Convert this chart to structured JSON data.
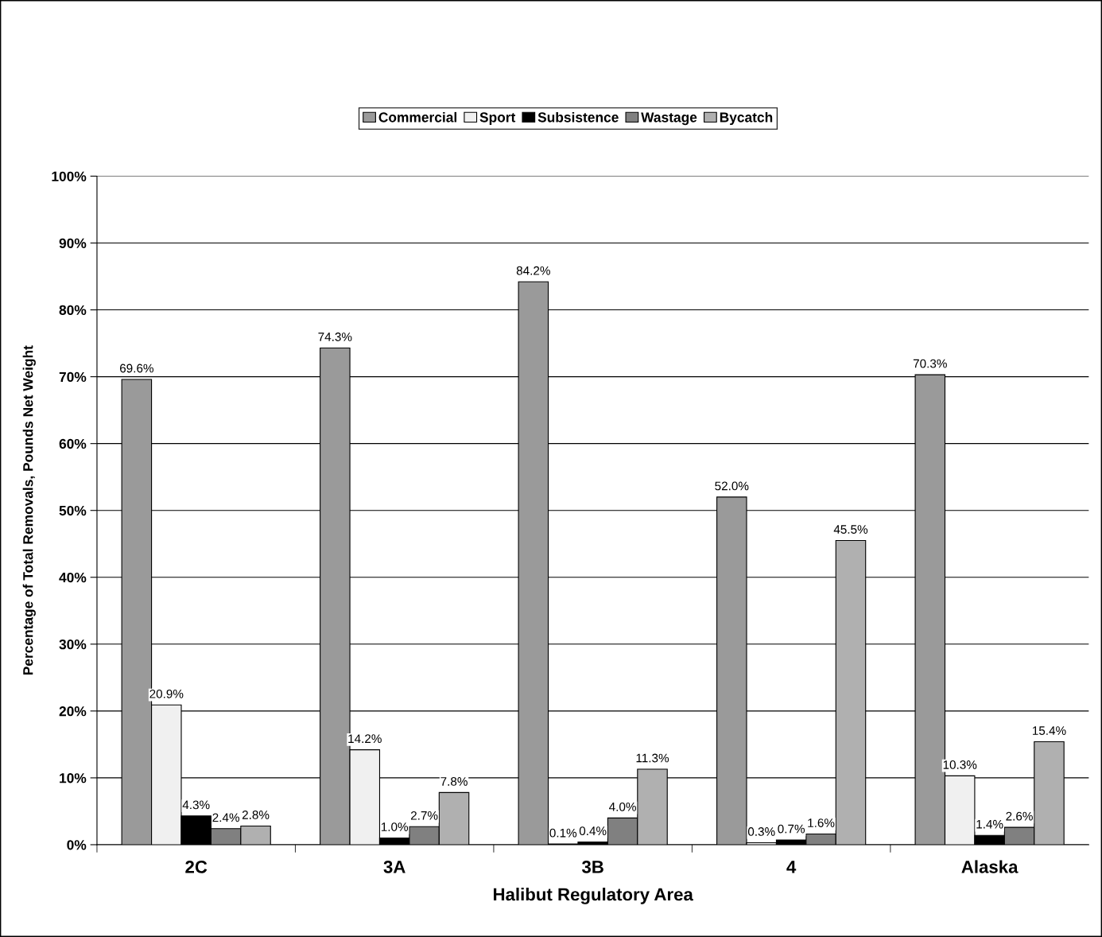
{
  "chart_data": {
    "type": "bar",
    "xlabel": "Halibut Regulatory Area",
    "ylabel": "Percentage of Total Removals, Pounds Net Weight",
    "categories": [
      "2C",
      "3A",
      "3B",
      "4",
      "Alaska"
    ],
    "series": [
      {
        "name": "Commercial",
        "color": "#9a9a9a",
        "values": [
          69.6,
          74.3,
          84.2,
          52.0,
          70.3
        ],
        "value_labels": [
          "69.6%",
          "74.3%",
          "84.2%",
          "52.0%",
          "70.3%"
        ]
      },
      {
        "name": "Sport",
        "color": "#f0f0f0",
        "values": [
          20.9,
          14.2,
          0.1,
          0.3,
          10.3
        ],
        "value_labels": [
          "20.9%",
          "14.2%",
          "0.1%",
          "0.3%",
          "10.3%"
        ]
      },
      {
        "name": "Subsistence",
        "color": "#000000",
        "values": [
          4.3,
          1.0,
          0.4,
          0.7,
          1.4
        ],
        "value_labels": [
          "4.3%",
          "1.0%",
          "0.4%",
          "0.7%",
          "1.4%"
        ]
      },
      {
        "name": "Wastage",
        "color": "#808080",
        "values": [
          2.4,
          2.7,
          4.0,
          1.6,
          2.6
        ],
        "value_labels": [
          "2.4%",
          "2.7%",
          "4.0%",
          "1.6%",
          "2.6%"
        ]
      },
      {
        "name": "Bycatch",
        "color": "#b0b0b0",
        "values": [
          2.8,
          7.8,
          11.3,
          45.5,
          15.4
        ],
        "value_labels": [
          "2.8%",
          "7.8%",
          "11.3%",
          "45.5%",
          "15.4%"
        ]
      }
    ],
    "ylim": [
      0,
      100
    ],
    "yticks": [
      {
        "value": 0,
        "label": "0%"
      },
      {
        "value": 10,
        "label": "10%"
      },
      {
        "value": 20,
        "label": "20%"
      },
      {
        "value": 30,
        "label": "30%"
      },
      {
        "value": 40,
        "label": "40%"
      },
      {
        "value": 50,
        "label": "50%"
      },
      {
        "value": 60,
        "label": "60%"
      },
      {
        "value": 70,
        "label": "70%"
      },
      {
        "value": 80,
        "label": "80%"
      },
      {
        "value": 90,
        "label": "90%"
      },
      {
        "value": 100,
        "label": "100%"
      }
    ],
    "grid": "y",
    "legend": "top"
  }
}
